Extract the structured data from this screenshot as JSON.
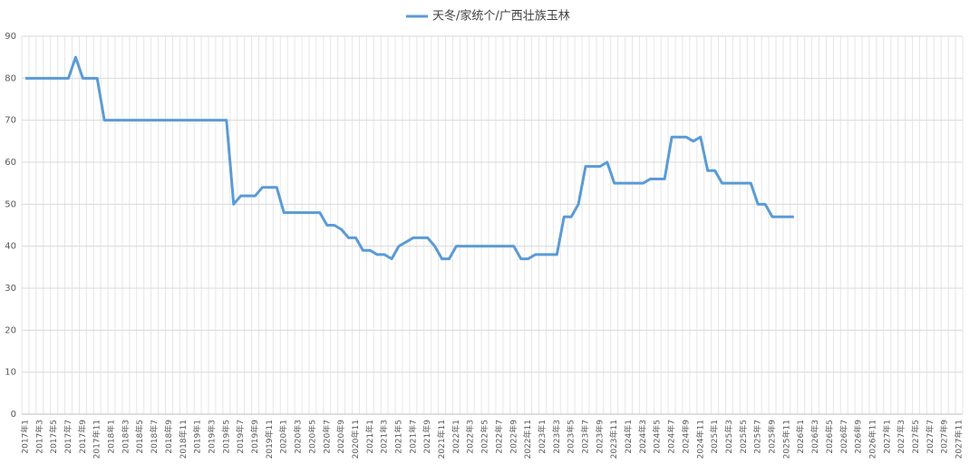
{
  "chart_data": {
    "type": "line",
    "categories": [
      "2017年1",
      null,
      "2017年3",
      null,
      "2017年5",
      null,
      "2017年7",
      null,
      "2017年9",
      null,
      "2017年11",
      null,
      "2018年1",
      null,
      "2018年3",
      null,
      "2018年5",
      null,
      "2018年7",
      null,
      "2018年9",
      null,
      "2018年11",
      null,
      "2019年1",
      null,
      "2019年3",
      null,
      "2019年5",
      null,
      "2019年7",
      null,
      "2019年9",
      null,
      "2019年11",
      null,
      "2020年1",
      null,
      "2020年3",
      null,
      "2020年5",
      null,
      "2020年7",
      null,
      "2020年9",
      null,
      "2020年11",
      null,
      "2021年1",
      null,
      "2021年3",
      null,
      "2021年5",
      null,
      "2021年7",
      null,
      "2021年9",
      null,
      "2021年11",
      null,
      "2022年1",
      null,
      "2022年3",
      null,
      "2022年5",
      null,
      "2022年7",
      null,
      "2022年9",
      null,
      "2022年11",
      null,
      "2023年1",
      null,
      "2023年3",
      null,
      "2023年5",
      null,
      "2023年7",
      null,
      "2023年9",
      null,
      "2023年11",
      null,
      "2024年1",
      null,
      "2024年3",
      null,
      "2024年5",
      null,
      "2024年7",
      null,
      "2024年9",
      null,
      "2024年11",
      null,
      "2025年1",
      null,
      "2025年3",
      null,
      "2025年5",
      null,
      "2025年7",
      null,
      "2025年9",
      null,
      "2025年11",
      null,
      "2026年1",
      null,
      "2026年3",
      null,
      "2026年5",
      null,
      "2026年7",
      null,
      "2026年9",
      null,
      "2026年11",
      null,
      "2027年1",
      null,
      "2027年3",
      null,
      "2027年5",
      null,
      "2027年7",
      null,
      "2027年9",
      null,
      "2027年11"
    ],
    "series": [
      {
        "name": "天冬/家统个/广西壮族玉林",
        "color": "#5b9bd5",
        "values": [
          80,
          80,
          80,
          80,
          80,
          80,
          80,
          85,
          80,
          80,
          80,
          70,
          70,
          70,
          70,
          70,
          70,
          70,
          70,
          70,
          70,
          70,
          70,
          70,
          70,
          70,
          70,
          70,
          70,
          50,
          52,
          52,
          52,
          54,
          54,
          54,
          48,
          48,
          48,
          48,
          48,
          48,
          45,
          45,
          44,
          42,
          42,
          39,
          39,
          38,
          38,
          37,
          40,
          41,
          42,
          42,
          42,
          40,
          37,
          37,
          40,
          40,
          40,
          40,
          40,
          40,
          40,
          40,
          40,
          37,
          37,
          38,
          38,
          38,
          38,
          47,
          47,
          50,
          59,
          59,
          59,
          60,
          55,
          55,
          55,
          55,
          55,
          56,
          56,
          56,
          66,
          66,
          66,
          65,
          66,
          58,
          58,
          55,
          55,
          55,
          55,
          55,
          50,
          50,
          47,
          47,
          47,
          47,
          null,
          null,
          null,
          null,
          null,
          null,
          null,
          null,
          null,
          null,
          null,
          null,
          null,
          null,
          null,
          null,
          null,
          null,
          null,
          null,
          null,
          null,
          null
        ]
      }
    ],
    "ylim": [
      0,
      90
    ],
    "yticks": [
      0,
      10,
      20,
      30,
      40,
      50,
      60,
      70,
      80,
      90
    ],
    "grid": true,
    "legend": "top"
  }
}
